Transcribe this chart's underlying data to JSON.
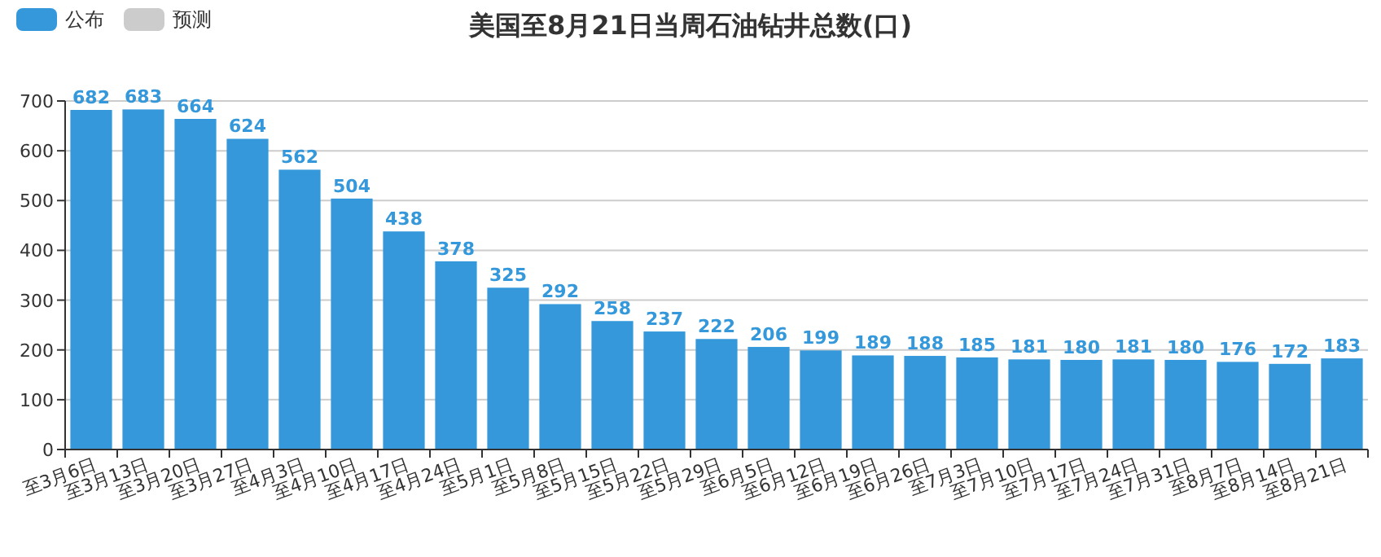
{
  "chart_data": {
    "type": "bar",
    "title": "美国至8月21日当周石油钻井总数(口)",
    "categories": [
      "至3月6日",
      "至3月13日",
      "至3月20日",
      "至3月27日",
      "至4月3日",
      "至4月10日",
      "至4月17日",
      "至4月24日",
      "至5月1日",
      "至5月8日",
      "至5月15日",
      "至5月22日",
      "至5月29日",
      "至6月5日",
      "至6月12日",
      "至6月19日",
      "至6月26日",
      "至7月3日",
      "至7月10日",
      "至7月17日",
      "至7月24日",
      "至7月31日",
      "至8月7日",
      "至8月14日",
      "至8月21日"
    ],
    "series": [
      {
        "name": "公布",
        "color": "#3498db",
        "values": [
          682,
          683,
          664,
          624,
          562,
          504,
          438,
          378,
          325,
          292,
          258,
          237,
          222,
          206,
          199,
          189,
          188,
          185,
          181,
          180,
          181,
          180,
          176,
          172,
          183
        ]
      },
      {
        "name": "预测",
        "color": "#cccccc",
        "values": [
          null,
          null,
          null,
          null,
          null,
          null,
          null,
          null,
          null,
          null,
          null,
          null,
          null,
          null,
          null,
          null,
          null,
          null,
          null,
          null,
          null,
          null,
          null,
          null,
          null
        ]
      }
    ],
    "ylim": [
      0,
      700
    ],
    "yticks": [
      0,
      100,
      200,
      300,
      400,
      500,
      600,
      700
    ],
    "grid": "y",
    "legend": "top left",
    "data_labels": true
  }
}
